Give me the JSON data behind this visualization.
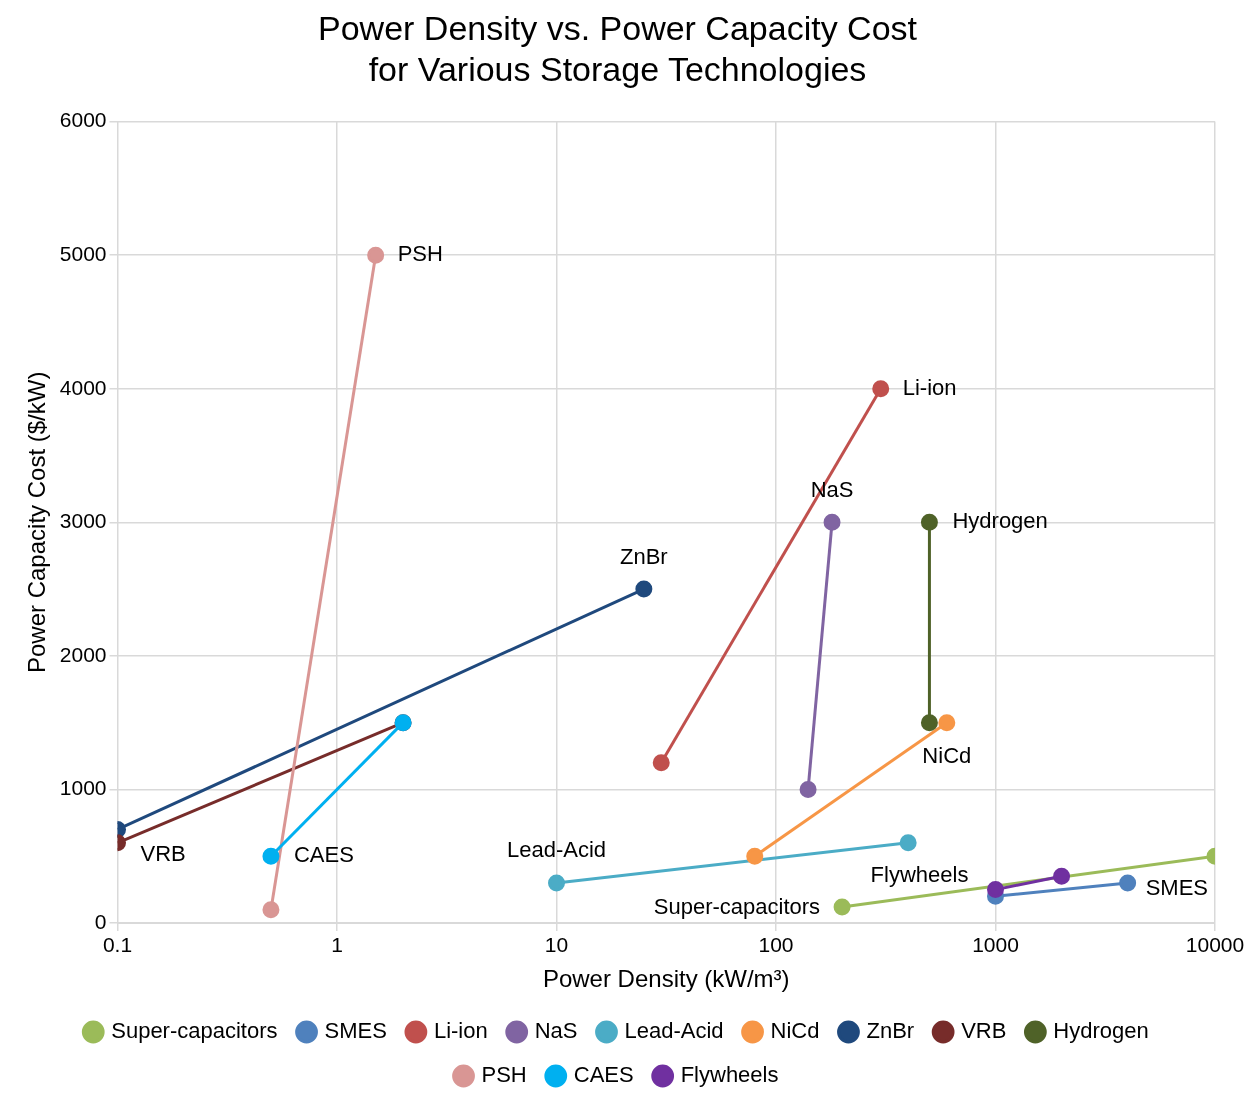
{
  "chart_data": {
    "type": "line",
    "title": "Power Density vs. Power Capacity Cost\nfor Various Storage Technologies",
    "xlabel": "Power Density (kW/m³)",
    "ylabel": "Power Capacity Cost ($/kW)",
    "log": "x",
    "xlim": [
      0.1,
      10000
    ],
    "xticks": [
      0.1,
      1,
      10,
      100,
      1000,
      10000
    ],
    "ylim": [
      0,
      6000
    ],
    "yticks": [
      0,
      1000,
      2000,
      3000,
      4000,
      5000,
      6000
    ],
    "grid": true,
    "legend": "bottom",
    "marker": "circle",
    "line_style": "solid",
    "series": [
      {
        "name": "Super-capacitors",
        "color": "#9bbb59",
        "x": [
          200,
          10000
        ],
        "values": [
          120,
          500
        ]
      },
      {
        "name": "SMES",
        "color": "#4f81bd",
        "x": [
          1000,
          4000
        ],
        "values": [
          200,
          300
        ]
      },
      {
        "name": "Li-ion",
        "color": "#c0504d",
        "x": [
          30,
          300
        ],
        "values": [
          1200,
          4000
        ]
      },
      {
        "name": "NaS",
        "color": "#8064a2",
        "x": [
          140,
          180
        ],
        "values": [
          1000,
          3000
        ]
      },
      {
        "name": "Lead-Acid",
        "color": "#4bacc6",
        "x": [
          10,
          400
        ],
        "values": [
          300,
          600
        ]
      },
      {
        "name": "NiCd",
        "color": "#f79646",
        "x": [
          80,
          600
        ],
        "values": [
          500,
          1500
        ]
      },
      {
        "name": "ZnBr",
        "color": "#1f497d",
        "x": [
          0.1,
          25
        ],
        "values": [
          700,
          2500
        ]
      },
      {
        "name": "VRB",
        "color": "#772c2a",
        "x": [
          0.1,
          2
        ],
        "values": [
          600,
          1500
        ]
      },
      {
        "name": "Hydrogen",
        "color": "#4f6228",
        "x": [
          500,
          500
        ],
        "values": [
          1500,
          3000
        ]
      },
      {
        "name": "PSH",
        "color": "#d99694",
        "x": [
          0.5,
          1.5
        ],
        "values": [
          100,
          5000
        ]
      },
      {
        "name": "CAES",
        "color": "#00b0f0",
        "x": [
          0.5,
          2
        ],
        "values": [
          500,
          1500
        ]
      },
      {
        "name": "Flywheels",
        "color": "#7030a0",
        "x": [
          1000,
          2000
        ],
        "values": [
          250,
          350
        ]
      }
    ]
  }
}
